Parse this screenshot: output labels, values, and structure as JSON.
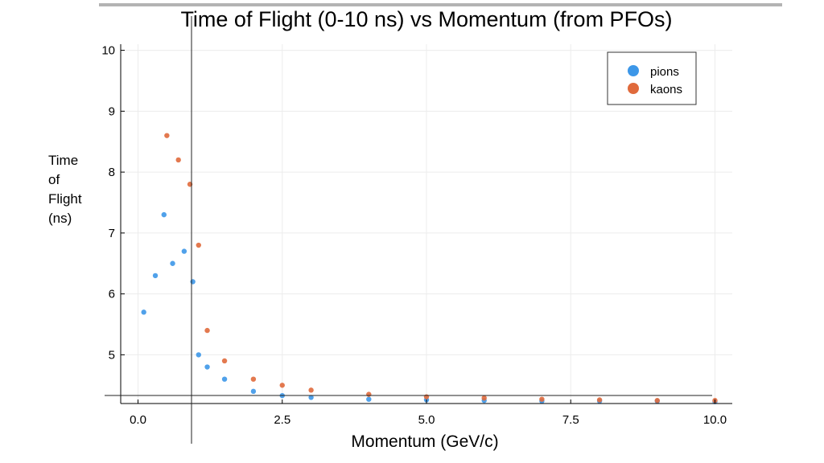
{
  "side_label": [
    "Time",
    "of",
    "Flight",
    "(ns)"
  ],
  "colors": {
    "pions": "#3d97e8",
    "kaons": "#e06a3c",
    "axis": "#000000",
    "grid": "#ececec",
    "top_bar": "#b3b3b3"
  },
  "chart_data": {
    "type": "scatter",
    "title": "Time of Flight (0-10 ns) vs Momentum (from PFOs)",
    "xlabel": "Momentum (GeV/c)",
    "ylabel": "",
    "xlim": [
      -0.3,
      10.3
    ],
    "ylim": [
      4.2,
      10.1
    ],
    "xticks": [
      "0.0",
      "2.5",
      "5.0",
      "7.5",
      "10.0"
    ],
    "yticks": [
      "5",
      "6",
      "7",
      "8",
      "9",
      "10"
    ],
    "grid": true,
    "legend_position": "top-right",
    "series": [
      {
        "name": "pions",
        "color": "#3d97e8",
        "x": [
          0.1,
          0.3,
          0.45,
          0.6,
          0.8,
          0.95,
          1.05,
          1.2,
          1.5,
          2.0,
          2.5,
          3.0,
          4.0,
          5.0,
          6.0,
          7.0,
          8.0,
          9.0,
          10.0
        ],
        "y": [
          5.7,
          6.3,
          7.3,
          6.5,
          6.7,
          6.2,
          5.0,
          4.8,
          4.6,
          4.4,
          4.33,
          4.3,
          4.27,
          4.26,
          4.25,
          4.24,
          4.24,
          4.24,
          4.23
        ]
      },
      {
        "name": "kaons",
        "color": "#e06a3c",
        "x": [
          0.5,
          0.7,
          0.9,
          1.05,
          1.2,
          1.5,
          2.0,
          2.5,
          3.0,
          4.0,
          5.0,
          6.0,
          7.0,
          8.0,
          9.0,
          10.0
        ],
        "y": [
          8.6,
          8.2,
          7.8,
          6.8,
          5.4,
          4.9,
          4.6,
          4.5,
          4.42,
          4.35,
          4.31,
          4.29,
          4.27,
          4.26,
          4.25,
          4.25
        ]
      }
    ]
  }
}
